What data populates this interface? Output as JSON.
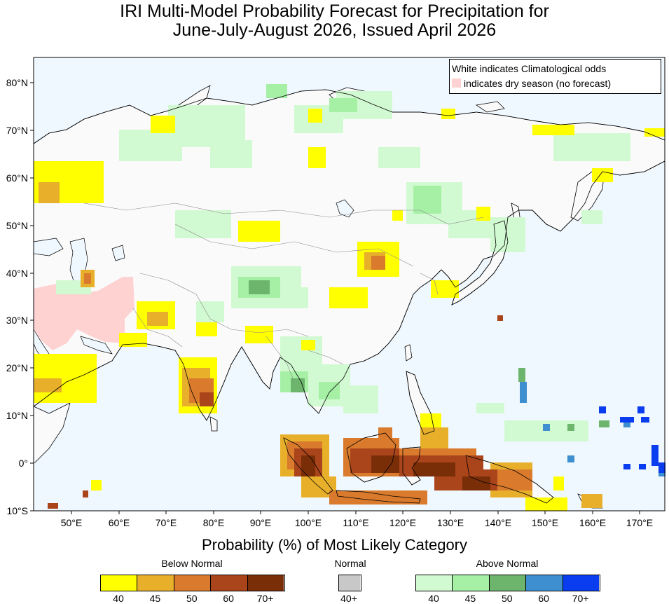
{
  "title": {
    "line1": "IRI Multi-Model Probability Forecast for Precipitation for",
    "line2": "June-July-August 2026, Issued April 2026"
  },
  "legend": {
    "line1": "White indicates Climatological odds",
    "line2": "indicates dry season (no forecast)",
    "dry_color": "#ffd2d2"
  },
  "axes": {
    "lat_labels": [
      "80°N",
      "70°N",
      "60°N",
      "50°N",
      "40°N",
      "30°N",
      "20°N",
      "10°N",
      "0°",
      "10°S"
    ],
    "lon_labels": [
      "50°E",
      "60°E",
      "70°E",
      "80°E",
      "90°E",
      "100°E",
      "110°E",
      "120°E",
      "130°E",
      "140°E",
      "150°E",
      "160°E",
      "170°E"
    ]
  },
  "colorbar": {
    "title": "Probability (%) of Most Likely Category",
    "below": {
      "label": "Below Normal",
      "colors": [
        "#ffff00",
        "#e8b02a",
        "#d97a2d",
        "#a9441b",
        "#7a2e08"
      ],
      "ticks": [
        "40",
        "45",
        "50",
        "60",
        "70+"
      ]
    },
    "normal": {
      "label": "Normal",
      "colors": [
        "#c8c8c8"
      ],
      "ticks": [
        "40+"
      ]
    },
    "above": {
      "label": "Above Normal",
      "colors": [
        "#d2fad2",
        "#a6f0a6",
        "#6db56d",
        "#3d8fcf",
        "#0a3cf0"
      ],
      "ticks": [
        "40",
        "45",
        "50",
        "60",
        "70+"
      ]
    }
  },
  "colors": {
    "ocean": "#f0f8ff",
    "land": "#fafafa"
  }
}
